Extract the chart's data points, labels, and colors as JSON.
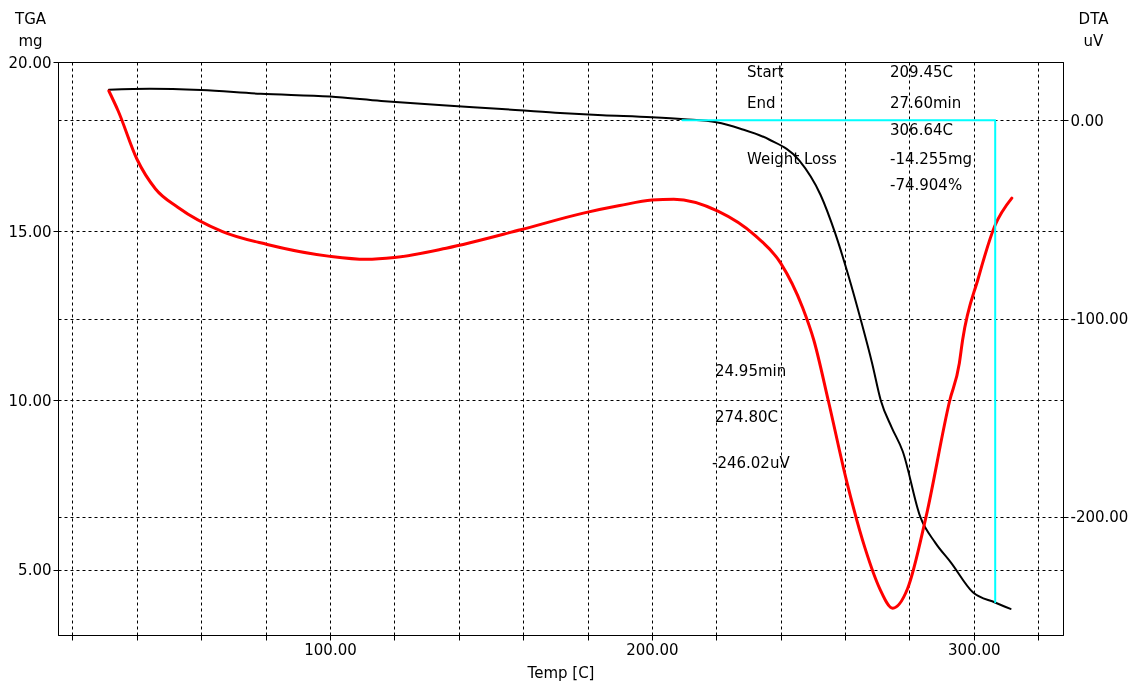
{
  "chart_data": {
    "type": "line",
    "xlabel": "Temp  [C]",
    "ylabel": "TGA\nmg",
    "y2label": "DTA\nuV",
    "xlim": [
      15.5,
      327.7
    ],
    "xticks": [
      {
        "value": 20,
        "label": null
      },
      {
        "value": 40,
        "label": null
      },
      {
        "value": 60,
        "label": null
      },
      {
        "value": 80,
        "label": null
      },
      {
        "value": 100,
        "label": "100.00"
      },
      {
        "value": 120,
        "label": null
      },
      {
        "value": 140,
        "label": null
      },
      {
        "value": 160,
        "label": null
      },
      {
        "value": 180,
        "label": null
      },
      {
        "value": 200,
        "label": "200.00"
      },
      {
        "value": 220,
        "label": null
      },
      {
        "value": 240,
        "label": null
      },
      {
        "value": 260,
        "label": null
      },
      {
        "value": 280,
        "label": null
      },
      {
        "value": 300,
        "label": "300.00"
      },
      {
        "value": 320,
        "label": null
      }
    ],
    "ylim": [
      3.07,
      20
    ],
    "yticks": [
      {
        "value": 5,
        "label": "5.00"
      },
      {
        "value": 10,
        "label": "10.00"
      },
      {
        "value": 15,
        "label": "15.00"
      },
      {
        "value": 20,
        "label": "20.00"
      }
    ],
    "y2lim": [
      -259.5,
      29.4
    ],
    "y2ticks": [
      {
        "value": -200,
        "label": "-200.00"
      },
      {
        "value": -100,
        "label": "-100.00"
      },
      {
        "value": 0,
        "label": "0.00"
      }
    ],
    "grid": true,
    "series": [
      {
        "color": "#000000",
        "x": [
          31.3,
          44,
          60,
          78.4,
          100,
          115.9,
          135,
          153.4,
          170,
          184.7,
          200,
          210,
          220,
          227.5,
          236.4,
          245.7,
          252.4,
          257,
          261,
          265,
          268.4,
          271.1,
          274.5,
          277.9,
          283.4,
          288,
          292.9,
          299.7,
          306.6,
          311.4
        ],
        "values": [
          19.18,
          19.21,
          19.17,
          19.06,
          18.98,
          18.85,
          18.72,
          18.61,
          18.5,
          18.43,
          18.37,
          18.31,
          18.22,
          18.03,
          17.71,
          17.1,
          16.07,
          14.92,
          13.7,
          12.34,
          11.1,
          10.0,
          9.2,
          8.5,
          6.55,
          5.8,
          5.21,
          4.33,
          4.03,
          3.84
        ]
      },
      {
        "color": "#ff0000",
        "axis": "y2",
        "x": [
          31.3,
          34.2,
          40,
          45.8,
          52.7,
          66.6,
          80.5,
          100,
          111.2,
          120,
          136.1,
          159.2,
          178.7,
          190,
          200,
          206.8,
          220.5,
          232,
          240,
          246.8,
          250.3,
          254.8,
          260.5,
          266.2,
          270.8,
          274.8,
          279.4,
          285.1,
          292.5,
          295.5,
          296.5,
          301.4,
          306.5,
          311.8
        ],
        "values": [
          14.8,
          4.7,
          -19.5,
          -34.6,
          -43.8,
          -56.1,
          -62.6,
          -68.6,
          -70.1,
          -69.2,
          -64.5,
          -55.2,
          -46.8,
          -43,
          -40.2,
          -39.8,
          -45.8,
          -58,
          -72,
          -94.4,
          -110.9,
          -141.4,
          -182,
          -215.7,
          -236.2,
          -246,
          -236.2,
          -200.3,
          -141.4,
          -122.5,
          -110.9,
          -79.5,
          -53.3,
          -39.2
        ]
      },
      {
        "color": "#00ffff",
        "axis": "y2",
        "x": [
          209.45,
          306.64,
          306.64
        ],
        "values": [
          0,
          0,
          -243
        ]
      }
    ],
    "annotations": [
      "Start",
      "209.45C",
      "End",
      "27.60min",
      "306.64C",
      "Weight Loss",
      "-14.255mg",
      "-74.904%",
      "24.95min",
      "274.80C",
      "-246.02uV"
    ]
  }
}
